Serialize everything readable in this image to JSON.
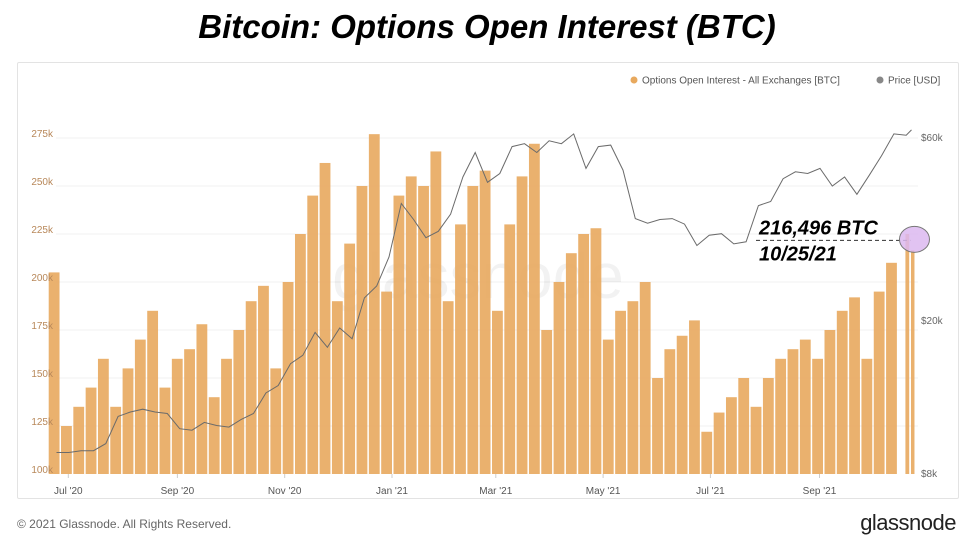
{
  "title": "Bitcoin: Options Open Interest (BTC)",
  "footer": {
    "copyright": "© 2021 Glassnode. All Rights Reserved.",
    "logo": "glassnode"
  },
  "watermark": "glassnode",
  "colors": {
    "oi": "#e8a95e",
    "price": "#6b6b6b",
    "highlight": "#dcb8f0"
  },
  "chart_data": {
    "type": "bar+line",
    "legend": [
      {
        "name": "Options Open Interest - All Exchanges [BTC]",
        "color": "#e8a95e"
      },
      {
        "name": "Price [USD]",
        "color": "#888888"
      }
    ],
    "legend_position": "top-right",
    "grid": true,
    "left_axis": {
      "ticks": [
        "100k",
        "125k",
        "150k",
        "175k",
        "200k",
        "225k",
        "250k",
        "275k"
      ],
      "values": [
        100000,
        125000,
        150000,
        175000,
        200000,
        225000,
        250000,
        275000
      ],
      "ylim": [
        100000,
        275000
      ]
    },
    "right_axis": {
      "scale": "log",
      "ticks": [
        "$8k",
        "$20k",
        "$60k"
      ],
      "values": [
        8000,
        20000,
        60000
      ],
      "ylim": [
        8000,
        60000
      ]
    },
    "x_ticks": [
      {
        "label": "Jul '20",
        "date": "2020-07-01"
      },
      {
        "label": "Sep '20",
        "date": "2020-09-01"
      },
      {
        "label": "Nov '20",
        "date": "2020-11-01"
      },
      {
        "label": "Jan '21",
        "date": "2021-01-01"
      },
      {
        "label": "Mar '21",
        "date": "2021-03-01"
      },
      {
        "label": "May '21",
        "date": "2021-05-01"
      },
      {
        "label": "Jul '21",
        "date": "2021-07-01"
      },
      {
        "label": "Sep '21",
        "date": "2021-09-01"
      }
    ],
    "xlim": [
      "2020-06-24",
      "2021-10-27"
    ],
    "dates": [
      "2020-06-26",
      "2020-07-03",
      "2020-07-10",
      "2020-07-17",
      "2020-07-24",
      "2020-07-31",
      "2020-08-07",
      "2020-08-14",
      "2020-08-21",
      "2020-08-28",
      "2020-09-04",
      "2020-09-11",
      "2020-09-18",
      "2020-09-25",
      "2020-10-02",
      "2020-10-09",
      "2020-10-16",
      "2020-10-23",
      "2020-10-30",
      "2020-11-06",
      "2020-11-13",
      "2020-11-20",
      "2020-11-27",
      "2020-12-04",
      "2020-12-11",
      "2020-12-18",
      "2020-12-25",
      "2021-01-01",
      "2021-01-08",
      "2021-01-15",
      "2021-01-22",
      "2021-01-29",
      "2021-02-05",
      "2021-02-12",
      "2021-02-19",
      "2021-02-26",
      "2021-03-05",
      "2021-03-12",
      "2021-03-19",
      "2021-03-26",
      "2021-04-02",
      "2021-04-09",
      "2021-04-16",
      "2021-04-23",
      "2021-04-30",
      "2021-05-07",
      "2021-05-14",
      "2021-05-21",
      "2021-05-28",
      "2021-06-04",
      "2021-06-11",
      "2021-06-18",
      "2021-06-25",
      "2021-07-02",
      "2021-07-09",
      "2021-07-16",
      "2021-07-23",
      "2021-07-30",
      "2021-08-06",
      "2021-08-13",
      "2021-08-20",
      "2021-08-27",
      "2021-09-03",
      "2021-09-10",
      "2021-09-17",
      "2021-09-24",
      "2021-10-01",
      "2021-10-08",
      "2021-10-15",
      "2021-10-22",
      "2021-10-25"
    ],
    "series": [
      {
        "name": "Options Open Interest - All Exchanges [BTC]",
        "type": "bar",
        "axis": "left",
        "values": [
          205000,
          125000,
          135000,
          145000,
          160000,
          135000,
          155000,
          170000,
          185000,
          145000,
          160000,
          165000,
          178000,
          140000,
          160000,
          175000,
          190000,
          198000,
          155000,
          200000,
          225000,
          245000,
          262000,
          190000,
          220000,
          250000,
          277000,
          195000,
          245000,
          255000,
          250000,
          268000,
          190000,
          230000,
          250000,
          258000,
          185000,
          230000,
          255000,
          272000,
          175000,
          200000,
          215000,
          225000,
          228000,
          170000,
          185000,
          190000,
          200000,
          150000,
          165000,
          172000,
          180000,
          122000,
          132000,
          140000,
          150000,
          135000,
          150000,
          160000,
          165000,
          170000,
          160000,
          175000,
          185000,
          192000,
          160000,
          195000,
          210000,
          225000,
          216496
        ]
      },
      {
        "name": "Price [USD]",
        "type": "line",
        "axis": "right",
        "values": [
          9100,
          9100,
          9200,
          9200,
          9600,
          11300,
          11600,
          11800,
          11600,
          11500,
          10500,
          10400,
          10900,
          10700,
          10600,
          11100,
          11500,
          13000,
          13600,
          15500,
          16300,
          18700,
          17100,
          19200,
          18000,
          23000,
          24700,
          29400,
          40500,
          36800,
          33000,
          34300,
          38000,
          47500,
          55000,
          46000,
          48500,
          57000,
          58000,
          55000,
          59000,
          58000,
          61500,
          50000,
          57000,
          57500,
          49500,
          37000,
          36000,
          36800,
          37000,
          35800,
          31500,
          33500,
          33800,
          31800,
          32200,
          40000,
          41000,
          47000,
          49000,
          48500,
          50000,
          45000,
          47500,
          42800,
          48000,
          54000,
          61500,
          61000,
          63000
        ]
      }
    ],
    "annotation": {
      "value_label": "216,496 BTC",
      "date_label": "10/25/21",
      "value": 216496,
      "date": "2021-10-25"
    }
  }
}
